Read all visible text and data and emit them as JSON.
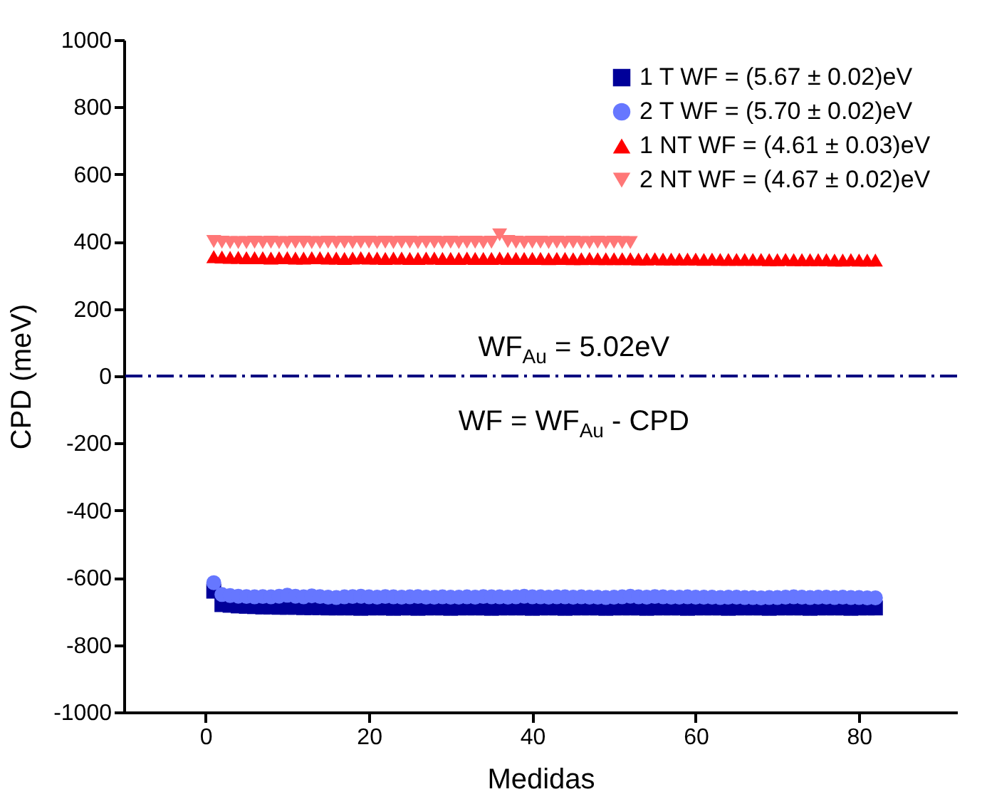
{
  "chart_data": {
    "type": "scatter",
    "xlabel": "Medidas",
    "ylabel": "CPD (meV)",
    "xlim": [
      -10,
      92
    ],
    "xticks": [
      0,
      20,
      40,
      60,
      80
    ],
    "ylim": [
      -1000,
      1000
    ],
    "yticks": [
      -1000,
      -800,
      -600,
      -400,
      -200,
      0,
      200,
      400,
      600,
      800,
      1000
    ],
    "grid": false,
    "legend": "top right",
    "x": [
      1,
      2,
      3,
      4,
      5,
      6,
      7,
      8,
      9,
      10,
      11,
      12,
      13,
      14,
      15,
      16,
      17,
      18,
      19,
      20,
      21,
      22,
      23,
      24,
      25,
      26,
      27,
      28,
      29,
      30,
      31,
      32,
      33,
      34,
      35,
      36,
      37,
      38,
      39,
      40,
      41,
      42,
      43,
      44,
      45,
      46,
      47,
      48,
      49,
      50,
      51,
      52,
      53,
      54,
      55,
      56,
      57,
      58,
      59,
      60,
      61,
      62,
      63,
      64,
      65,
      66,
      67,
      68,
      69,
      70,
      71,
      72,
      73,
      74,
      75,
      76,
      77,
      78,
      79,
      80,
      81,
      82
    ],
    "series": [
      {
        "name": "1 T WF = (5.67 ± 0.02)eV",
        "color": "#000099",
        "marker": "square",
        "values": [
          -640,
          -680,
          -682,
          -684,
          -685,
          -686,
          -687,
          -687,
          -688,
          -688,
          -688,
          -689,
          -689,
          -689,
          -690,
          -690,
          -690,
          -690,
          -691,
          -690,
          -690,
          -690,
          -691,
          -690,
          -690,
          -691,
          -690,
          -690,
          -690,
          -691,
          -690,
          -690,
          -690,
          -690,
          -691,
          -690,
          -690,
          -690,
          -690,
          -691,
          -690,
          -690,
          -690,
          -691,
          -690,
          -690,
          -690,
          -690,
          -691,
          -690,
          -690,
          -690,
          -690,
          -691,
          -690,
          -690,
          -690,
          -690,
          -691,
          -690,
          -690,
          -690,
          -690,
          -691,
          -690,
          -690,
          -690,
          -690,
          -691,
          -690,
          -690,
          -690,
          -690,
          -691,
          -690,
          -690,
          -690,
          -690,
          -691,
          -690,
          -690,
          -690
        ]
      },
      {
        "name": "2 T WF = (5.70 ± 0.02)eV",
        "color": "#6677ff",
        "marker": "circle",
        "values": [
          -615,
          -650,
          -653,
          -655,
          -656,
          -657,
          -656,
          -657,
          -655,
          -652,
          -655,
          -657,
          -654,
          -656,
          -658,
          -659,
          -657,
          -656,
          -655,
          -657,
          -658,
          -656,
          -657,
          -658,
          -657,
          -656,
          -658,
          -658,
          -657,
          -658,
          -658,
          -657,
          -658,
          -656,
          -657,
          -657,
          -658,
          -657,
          -655,
          -657,
          -657,
          -658,
          -657,
          -657,
          -658,
          -657,
          -658,
          -658,
          -659,
          -658,
          -657,
          -655,
          -657,
          -658,
          -656,
          -657,
          -658,
          -658,
          -657,
          -658,
          -658,
          -658,
          -659,
          -658,
          -658,
          -659,
          -659,
          -660,
          -659,
          -659,
          -658,
          -657,
          -658,
          -659,
          -658,
          -658,
          -659,
          -658,
          -659,
          -659,
          -660,
          -660
        ]
      },
      {
        "name": "1 NT WF = (4.61 ± 0.03)eV",
        "color": "#ff0000",
        "marker": "triangle",
        "values": [
          355,
          354,
          353,
          353,
          352,
          352,
          352,
          351,
          352,
          352,
          351,
          351,
          352,
          352,
          351,
          351,
          350,
          351,
          352,
          351,
          351,
          350,
          351,
          351,
          350,
          350,
          351,
          351,
          350,
          350,
          350,
          351,
          350,
          350,
          350,
          351,
          350,
          350,
          350,
          350,
          350,
          349,
          350,
          350,
          349,
          349,
          350,
          349,
          349,
          349,
          349,
          349,
          348,
          348,
          349,
          348,
          348,
          348,
          348,
          348,
          347,
          348,
          347,
          347,
          347,
          347,
          347,
          347,
          346,
          346,
          347,
          346,
          346,
          346,
          346,
          346,
          345,
          345,
          346,
          345,
          345,
          345
        ]
      },
      {
        "name": "2 NT WF = (4.67 ± 0.02)eV",
        "color": "#ff7777",
        "marker": "triangle-down",
        "x": [
          1,
          2,
          3,
          4,
          5,
          6,
          7,
          8,
          9,
          10,
          11,
          12,
          13,
          14,
          15,
          16,
          17,
          18,
          19,
          20,
          21,
          22,
          23,
          24,
          25,
          26,
          27,
          28,
          29,
          30,
          31,
          32,
          33,
          34,
          35,
          36,
          37,
          38,
          39,
          40,
          41,
          42,
          43,
          44,
          45,
          46,
          47,
          48,
          49,
          50,
          51,
          52
        ],
        "values": [
          400,
          398,
          397,
          397,
          397,
          398,
          397,
          398,
          397,
          397,
          398,
          398,
          397,
          397,
          398,
          397,
          398,
          397,
          398,
          398,
          397,
          398,
          397,
          398,
          398,
          397,
          398,
          398,
          397,
          398,
          397,
          398,
          398,
          397,
          398,
          420,
          400,
          398,
          397,
          398,
          398,
          397,
          398,
          397,
          398,
          397,
          397,
          398,
          397,
          398,
          397,
          397
        ]
      }
    ],
    "ref_lines": [
      {
        "axis": "y",
        "value": 0,
        "color": "#000080",
        "line_style": "dashdot"
      }
    ],
    "annotations": [
      "WF$_{Au}$ = 5.02eV",
      "WF = WF$_{Au}$ - CPD"
    ]
  }
}
